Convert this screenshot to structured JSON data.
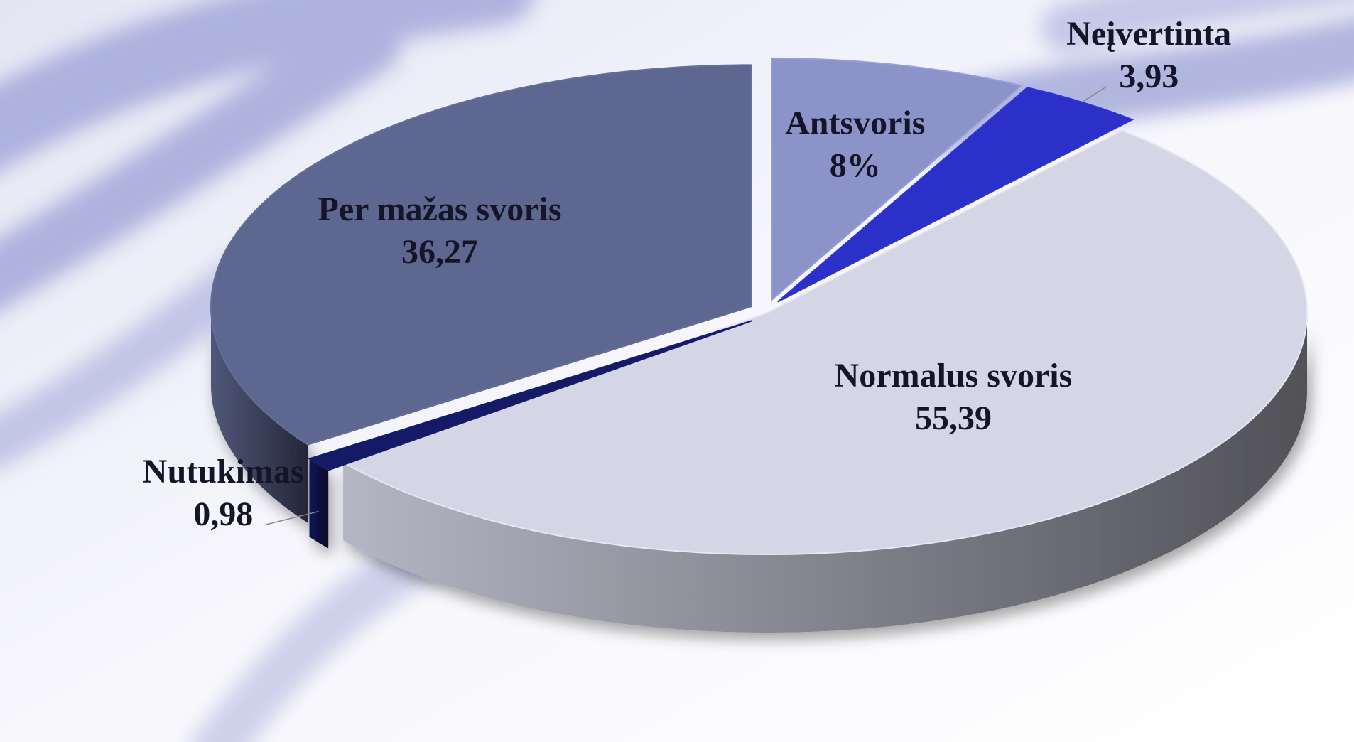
{
  "chart_data": {
    "type": "pie",
    "categories": [
      "Antsvoris",
      "Neįvertinta",
      "Normalus svoris",
      "Nutukimas",
      "Per mažas svoris"
    ],
    "values": [
      8,
      3.93,
      55.39,
      0.98,
      36.27
    ],
    "value_labels": [
      "8%",
      "3,93",
      "55,39",
      "0,98",
      "36,27"
    ],
    "colors": [
      "#8b93c8",
      "#2b30c8",
      "#d4d6e6",
      "#141a66",
      "#5e6790"
    ]
  }
}
